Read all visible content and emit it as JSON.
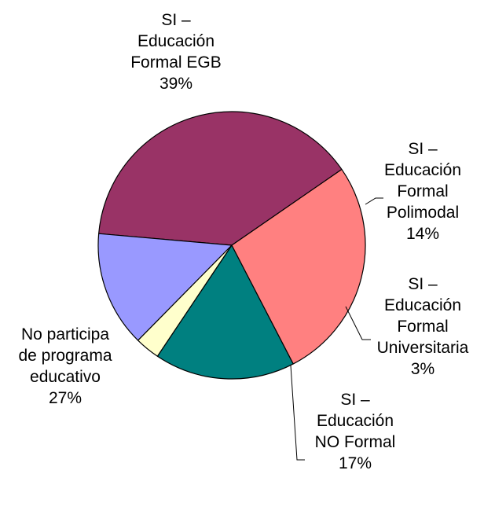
{
  "chart_data": {
    "type": "pie",
    "title": "",
    "slices": [
      {
        "lines": [
          "SI –",
          "Educación",
          "Formal EGB"
        ],
        "value": 39,
        "percent_label": "39%",
        "color": "#993366"
      },
      {
        "lines": [
          "SI –",
          "Educación",
          "Formal",
          "Polimodal"
        ],
        "value": 14,
        "percent_label": "14%",
        "color": "#9999FF"
      },
      {
        "lines": [
          "SI –",
          "Educación",
          "Formal",
          "Universitaria"
        ],
        "value": 3,
        "percent_label": "3%",
        "color": "#FFFFCC"
      },
      {
        "lines": [
          "SI –",
          "Educación",
          "NO Formal"
        ],
        "value": 17,
        "percent_label": "17%",
        "color": "#008080"
      },
      {
        "lines": [
          "No participa",
          "de programa",
          "educativo"
        ],
        "value": 27,
        "percent_label": "27%",
        "color": "#FF8080"
      }
    ],
    "legend": "none",
    "data_labels": "outside"
  }
}
